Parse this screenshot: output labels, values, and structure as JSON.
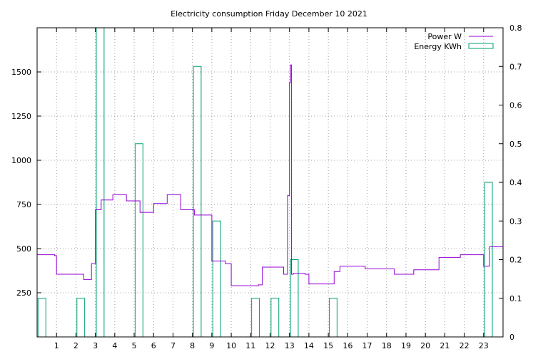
{
  "chart_data": {
    "type": "line",
    "title": "Electricity consumption Friday December 10 2021",
    "xlim": [
      0,
      24
    ],
    "ylim": [
      0,
      1750
    ],
    "y2lim": [
      0,
      0.8
    ],
    "grid": true,
    "legend_position": "top-right",
    "x_ticks": [
      "1",
      "2",
      "3",
      "4",
      "5",
      "6",
      "7",
      "8",
      "9",
      "10",
      "11",
      "12",
      "13",
      "14",
      "15",
      "16",
      "17",
      "18",
      "19",
      "20",
      "21",
      "22",
      "23"
    ],
    "y_ticks": [
      "250",
      "500",
      "750",
      "1000",
      "1250",
      "1500"
    ],
    "y2_ticks": [
      "0",
      "0.1",
      "0.2",
      "0.3",
      "0.4",
      "0.5",
      "0.6",
      "0.7",
      "0.8"
    ],
    "series": [
      {
        "name": "Power W",
        "axis": "left",
        "color": "#9400d3",
        "style": "step",
        "x": [
          0,
          0.9,
          1.0,
          2.4,
          2.8,
          3.0,
          3.3,
          3.9,
          4.6,
          5.3,
          6.0,
          6.7,
          7.4,
          8.1,
          9.0,
          9.7,
          10.0,
          11.4,
          11.6,
          12.7,
          12.9,
          13.0,
          13.05,
          13.1,
          13.2,
          13.8,
          14.0,
          15.3,
          15.6,
          16.9,
          18.4,
          19.4,
          20.7,
          21.8,
          23.0,
          23.3,
          24.0
        ],
        "y": [
          465,
          460,
          355,
          325,
          415,
          720,
          775,
          805,
          770,
          705,
          755,
          805,
          720,
          690,
          430,
          415,
          290,
          295,
          395,
          355,
          800,
          1440,
          1540,
          355,
          360,
          355,
          300,
          370,
          400,
          385,
          355,
          380,
          450,
          465,
          400,
          510,
          510
        ]
      },
      {
        "name": "Energy KWh",
        "axis": "right",
        "color": "#009e73",
        "style": "bars",
        "x": [
          0,
          2,
          3,
          5,
          8,
          9,
          11,
          12,
          13,
          15,
          23
        ],
        "y": [
          0.1,
          0.1,
          0.8,
          0.5,
          0.7,
          0.3,
          0.1,
          0.1,
          0.2,
          0.1,
          0.4
        ]
      }
    ]
  }
}
